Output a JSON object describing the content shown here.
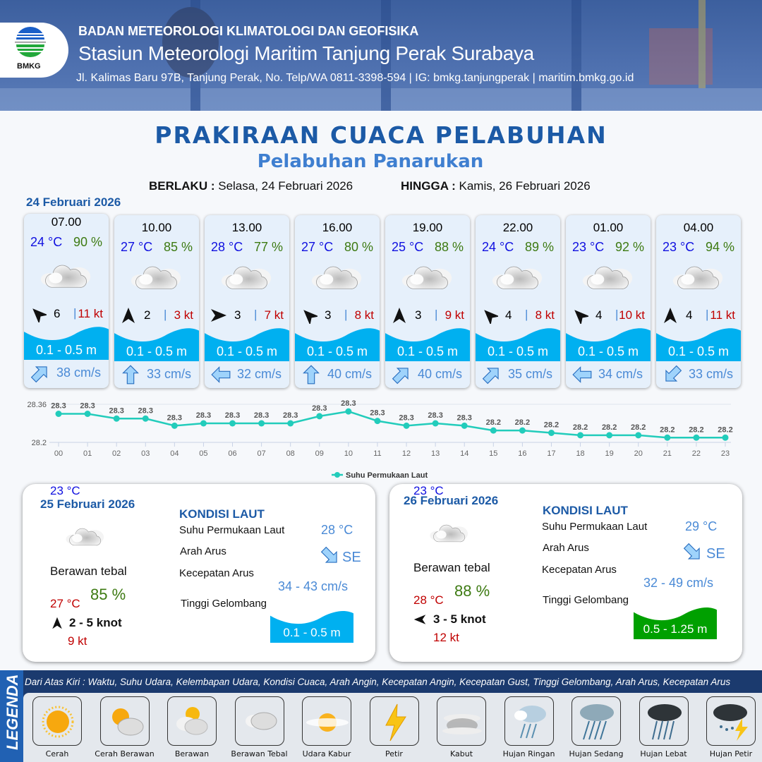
{
  "header": {
    "logo_text": "BMKG",
    "agency": "BADAN METEOROLOGI KLIMATOLOGI DAN GEOFISIKA",
    "station": "Stasiun Meteorologi Maritim Tanjung Perak Surabaya",
    "contact": "Jl. Kalimas Baru 97B, Tanjung Perak, No. Telp/WA 0811-3398-594 | IG: bmkg.tanjungperak | maritim.bmkg.go.id"
  },
  "title": "PRAKIRAAN CUACA PELABUHAN",
  "subtitle": "Pelabuhan Panarukan",
  "validity": {
    "from_label": "BERLAKU :",
    "from": "Selasa, 24 Februari 2026",
    "to_label": "HINGGA :",
    "to": "Kamis, 26 Februari 2026"
  },
  "day1_date": "24 Februari 2026",
  "colors": {
    "temp": "#1010e0",
    "humidity": "#3d7a12",
    "gust": "#c00000",
    "wave_low": "#00b0f0",
    "wave_moderate": "#00a000",
    "current": "#4a8ad6",
    "title": "#1c5aa6",
    "sst_line": "#22ccbb"
  },
  "cards": [
    {
      "time": "07.00",
      "temp": "24 °C",
      "hum": "90 %",
      "icon": "berawan-tebal",
      "wind_dir": "NW",
      "wind": "6",
      "gust": "11 kt",
      "wave": "0.1 - 0.5 m",
      "cur_dir": "NE",
      "cur": "38 cm/s"
    },
    {
      "time": "10.00",
      "temp": "27 °C",
      "hum": "85 %",
      "icon": "berawan-tebal",
      "wind_dir": "N",
      "wind": "2",
      "gust": "3 kt",
      "wave": "0.1 - 0.5 m",
      "cur_dir": "N",
      "cur": "33 cm/s"
    },
    {
      "time": "13.00",
      "temp": "28 °C",
      "hum": "77 %",
      "icon": "berawan-tebal",
      "wind_dir": "E",
      "wind": "3",
      "gust": "7 kt",
      "wave": "0.1 - 0.5 m",
      "cur_dir": "W",
      "cur": "32 cm/s"
    },
    {
      "time": "16.00",
      "temp": "27 °C",
      "hum": "80 %",
      "icon": "berawan-tebal",
      "wind_dir": "NW",
      "wind": "3",
      "gust": "8 kt",
      "wave": "0.1 - 0.5 m",
      "cur_dir": "N",
      "cur": "40 cm/s"
    },
    {
      "time": "19.00",
      "temp": "25 °C",
      "hum": "88 %",
      "icon": "berawan-tebal",
      "wind_dir": "N",
      "wind": "3",
      "gust": "9 kt",
      "wave": "0.1 - 0.5 m",
      "cur_dir": "NE",
      "cur": "40 cm/s"
    },
    {
      "time": "22.00",
      "temp": "24 °C",
      "hum": "89 %",
      "icon": "berawan-tebal",
      "wind_dir": "NW",
      "wind": "4",
      "gust": "8 kt",
      "wave": "0.1 - 0.5 m",
      "cur_dir": "NE",
      "cur": "35 cm/s"
    },
    {
      "time": "01.00",
      "temp": "23 °C",
      "hum": "92 %",
      "icon": "berawan-tebal",
      "wind_dir": "NW",
      "wind": "4",
      "gust": "10 kt",
      "wave": "0.1 - 0.5 m",
      "cur_dir": "W",
      "cur": "34 cm/s"
    },
    {
      "time": "04.00",
      "temp": "23 °C",
      "hum": "94 %",
      "icon": "berawan-tebal",
      "wind_dir": "N",
      "wind": "4",
      "gust": "11 kt",
      "wave": "0.1 - 0.5 m",
      "cur_dir": "SW",
      "cur": "33 cm/s"
    }
  ],
  "chart_data": {
    "type": "line",
    "title": "",
    "x": [
      "00",
      "01",
      "02",
      "03",
      "04",
      "05",
      "06",
      "07",
      "08",
      "09",
      "10",
      "11",
      "12",
      "13",
      "14",
      "15",
      "16",
      "17",
      "18",
      "19",
      "20",
      "21",
      "22",
      "23"
    ],
    "series": [
      {
        "name": "Suhu Permukaan Laut",
        "values": [
          28.32,
          28.32,
          28.3,
          28.3,
          28.27,
          28.28,
          28.28,
          28.28,
          28.28,
          28.31,
          28.33,
          28.29,
          28.27,
          28.28,
          28.27,
          28.25,
          28.25,
          28.24,
          28.23,
          28.23,
          28.23,
          28.22,
          28.22,
          28.22
        ],
        "labels": [
          "28.3",
          "28.3",
          "28.3",
          "28.3",
          "28.3",
          "28.3",
          "28.3",
          "28.3",
          "28.3",
          "28.3",
          "28.3",
          "28.3",
          "28.3",
          "28.3",
          "28.3",
          "28.2",
          "28.2",
          "28.2",
          "28.2",
          "28.2",
          "28.2",
          "28.2",
          "28.2",
          "28.2"
        ]
      }
    ],
    "yticks": [
      "28.36",
      "28.2"
    ],
    "ylim": [
      28.2,
      28.36
    ],
    "grid": true,
    "legend": "bottom-center"
  },
  "daily": [
    {
      "date": "25 Februari 2026",
      "cond": "Berawan tebal",
      "tmin": "23 °C",
      "tmax": "27 °C",
      "hum": "85 %",
      "wind_dir": "N",
      "wind": "2  - 5 knot",
      "gust": "9 kt",
      "kondisi": "KONDISI LAUT",
      "sst_label": "Suhu Permukaan Laut",
      "sst": "28 °C",
      "dir_label": "Arah Arus",
      "dir": "SE",
      "spd_label": "Kecepatan Arus",
      "spd": "34  - 43 cm/s",
      "wave_label": "Tinggi Gelombang",
      "wave": "0.1 - 0.5 m",
      "wave_color": "#00b0f0"
    },
    {
      "date": "26 Februari 2026",
      "cond": "Berawan tebal",
      "tmin": "23 °C",
      "tmax": "28 °C",
      "hum": "88 %",
      "wind_dir": "W",
      "wind": "3  - 5 knot",
      "gust": "12 kt",
      "kondisi": "KONDISI LAUT",
      "sst_label": "Suhu Permukaan Laut",
      "sst": "29 °C",
      "dir_label": "Arah Arus",
      "dir": "SE",
      "spd_label": "Kecepatan Arus",
      "spd": "32 - 49 cm/s",
      "wave_label": "Tinggi Gelombang",
      "wave": "0.5 - 1.25 m",
      "wave_color": "#00a000"
    }
  ],
  "legend": {
    "side_label": "LEGENDA",
    "description": "Dari Atas Kiri : Waktu, Suhu Udara, Kelembapan Udara, Kondisi Cuaca, Arah Angin, Kecepatan Angin, Kecepatan Gust, Tinggi Gelombang, Arah Arus, Kecepatan Arus",
    "items": [
      {
        "name": "Cerah",
        "icon": "sun"
      },
      {
        "name": "Cerah Berawan",
        "icon": "sun-cloud"
      },
      {
        "name": "Berawan",
        "icon": "cloudy"
      },
      {
        "name": "Berawan Tebal",
        "icon": "thick-cloud"
      },
      {
        "name": "Udara Kabur",
        "icon": "haze"
      },
      {
        "name": "Petir",
        "icon": "lightning"
      },
      {
        "name": "Kabut",
        "icon": "fog"
      },
      {
        "name": "Hujan Ringan",
        "icon": "light-rain"
      },
      {
        "name": "Hujan Sedang",
        "icon": "moderate-rain"
      },
      {
        "name": "Hujan Lebat",
        "icon": "heavy-rain"
      },
      {
        "name": "Hujan Petir",
        "icon": "thunderstorm"
      }
    ]
  }
}
